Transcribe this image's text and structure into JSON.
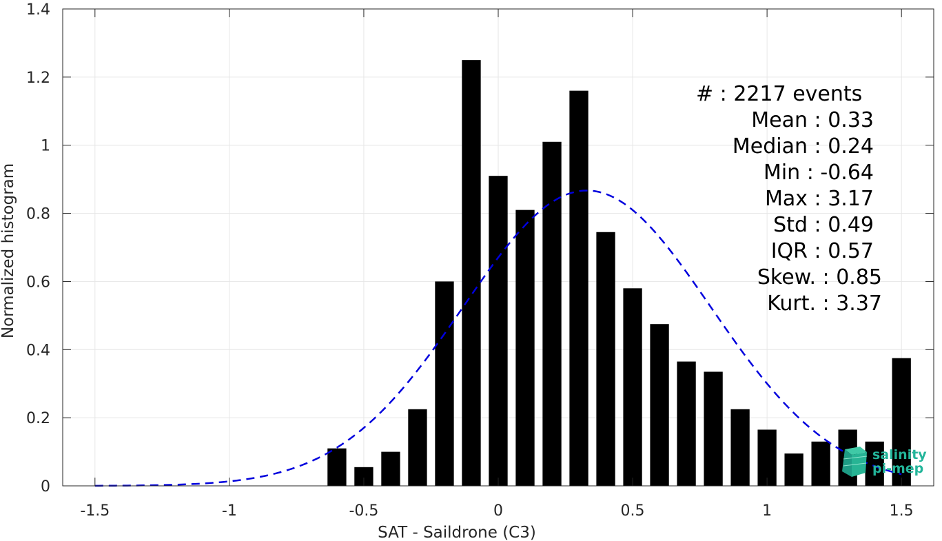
{
  "chart_data": {
    "type": "bar",
    "xlabel": "SAT - Saildrone (C3)",
    "ylabel": "Normalized histogram",
    "xlim": [
      -1.62,
      1.62
    ],
    "ylim": [
      0,
      1.4
    ],
    "xticks": [
      -1.5,
      -1,
      -0.5,
      0,
      0.5,
      1,
      1.5
    ],
    "xtick_labels": [
      "-1.5",
      "-1",
      "-0.5",
      "0",
      "0.5",
      "1",
      "1.5"
    ],
    "yticks": [
      0,
      0.2,
      0.4,
      0.6,
      0.8,
      1,
      1.2,
      1.4
    ],
    "ytick_labels": [
      "0",
      "0.2",
      "0.4",
      "0.6",
      "0.8",
      "1",
      "1.2",
      "1.4"
    ],
    "grid": true,
    "bar_color": "#000000",
    "bar_width": 0.07,
    "bars": {
      "x": [
        -0.6,
        -0.5,
        -0.4,
        -0.3,
        -0.2,
        -0.1,
        0.0,
        0.1,
        0.2,
        0.3,
        0.4,
        0.5,
        0.6,
        0.7,
        0.8,
        0.9,
        1.0,
        1.1,
        1.2,
        1.3,
        1.4,
        1.5
      ],
      "values": [
        0.11,
        0.055,
        0.1,
        0.225,
        0.6,
        1.25,
        0.91,
        0.81,
        1.01,
        1.16,
        0.745,
        0.58,
        0.475,
        0.365,
        0.335,
        0.225,
        0.165,
        0.095,
        0.13,
        0.165,
        0.13,
        0.375
      ]
    },
    "fit_curve": {
      "style": "dashed",
      "color": "#0000dd",
      "mean": 0.33,
      "std": 0.46,
      "peak": 0.867,
      "x_range": [
        -1.5,
        1.5
      ]
    }
  },
  "stats": {
    "lines": [
      "#  : 2217 events",
      "Mean : 0.33",
      "Median : 0.24",
      "Min : -0.64",
      "Max : 3.17",
      "Std : 0.49",
      "IQR : 0.57",
      "Skew. : 0.85",
      "Kurt. : 3.37"
    ]
  },
  "logo": {
    "line1": "salinity",
    "line2": "pi-mep",
    "color": "#23b59a"
  }
}
